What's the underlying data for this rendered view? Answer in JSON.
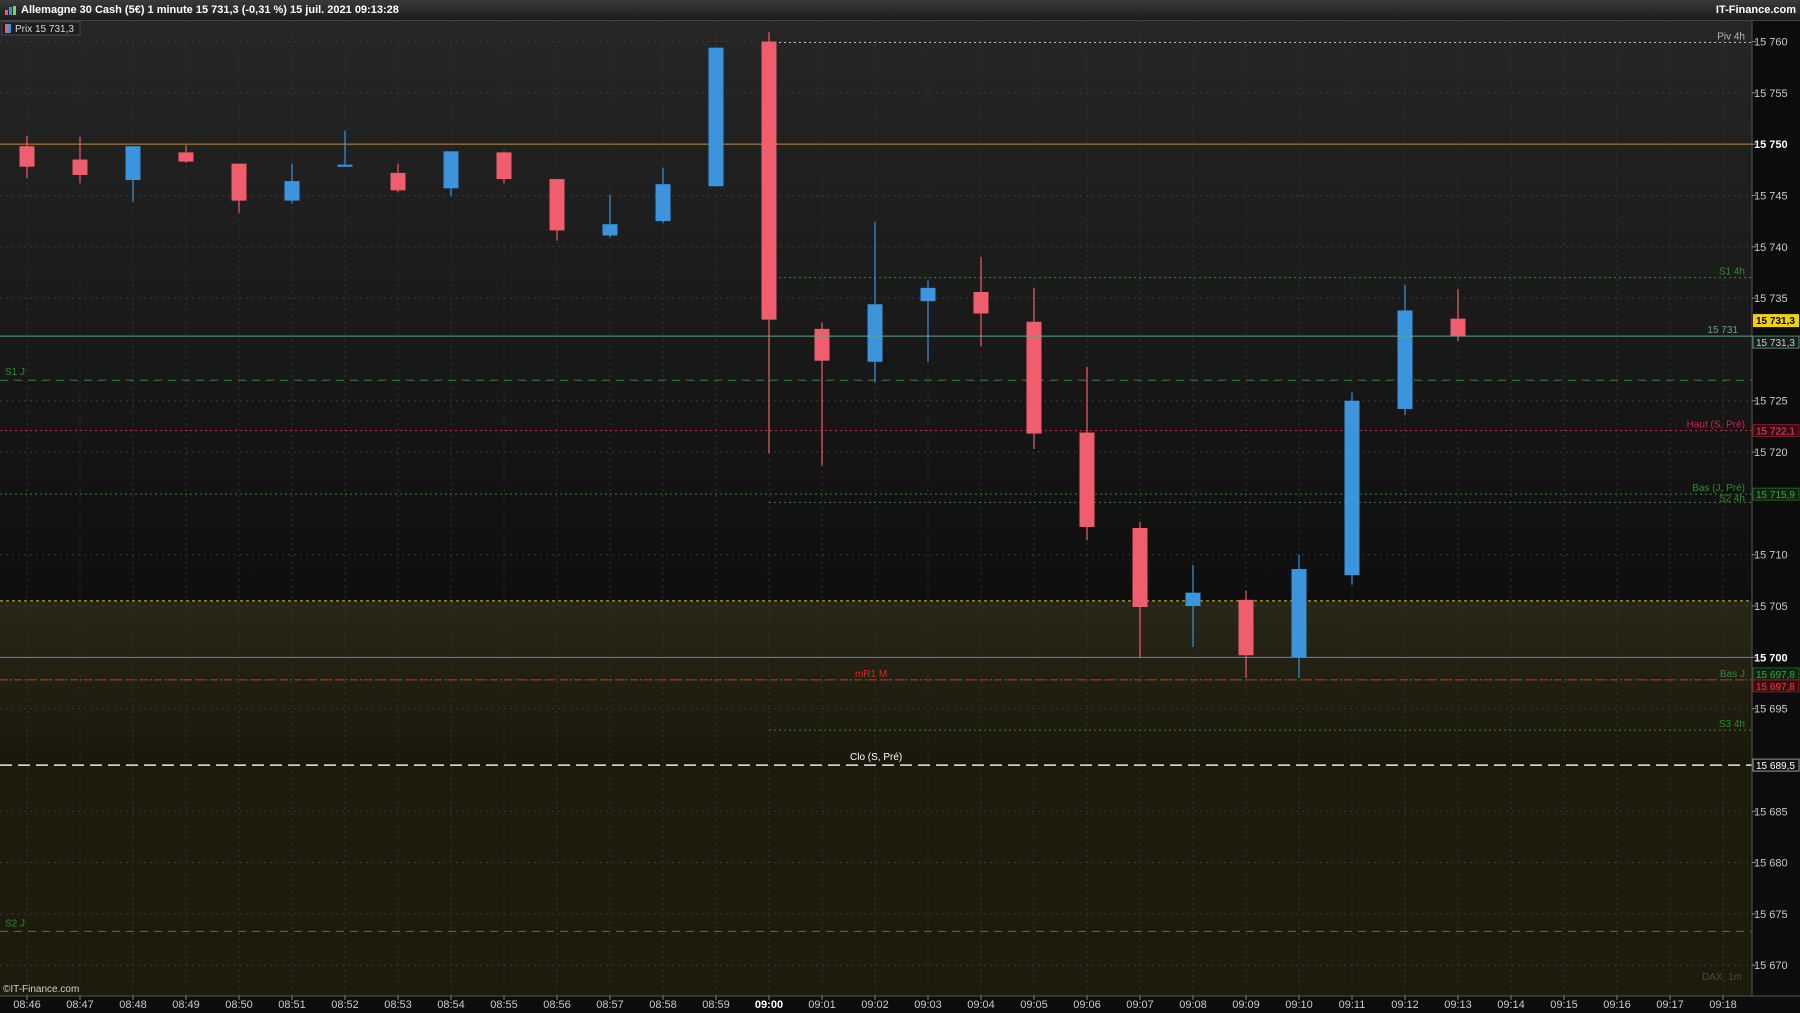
{
  "header": {
    "title": "Allemagne 30 Cash (5€) 1 minute 15 731,3 (-0,31 %) 15 juil. 2021 09:13:28",
    "brand": "IT-Finance.com"
  },
  "legend_tag": "Prix 15 731,3",
  "watermark": "DAX, 1m",
  "copyright": "©IT-Finance.com",
  "colors": {
    "up": "#3b94dc",
    "down": "#f05d6c",
    "price_line": "#5ea88a",
    "orange": "#c9892a"
  },
  "chart_data": {
    "type": "candlestick",
    "x_ticks": [
      "08:46",
      "08:47",
      "08:48",
      "08:49",
      "08:50",
      "08:51",
      "08:52",
      "08:53",
      "08:54",
      "08:55",
      "08:56",
      "08:57",
      "08:58",
      "08:59",
      "09:00",
      "09:01",
      "09:02",
      "09:03",
      "09:04",
      "09:05",
      "09:06",
      "09:07",
      "09:08",
      "09:09",
      "09:10",
      "09:11",
      "09:12",
      "09:13",
      "09:14",
      "09:15",
      "09:16",
      "09:17",
      "09:18"
    ],
    "x_tick_bold": "09:00",
    "ylim": [
      15667,
      15762
    ],
    "y_ticks": [
      {
        "v": 15760,
        "label": "15 760"
      },
      {
        "v": 15755,
        "label": "15 755"
      },
      {
        "v": 15750,
        "label": "15 750",
        "bold": true
      },
      {
        "v": 15745,
        "label": "15 745"
      },
      {
        "v": 15740,
        "label": "15 740"
      },
      {
        "v": 15735,
        "label": "15 735"
      },
      {
        "v": 15725,
        "label": "15 725"
      },
      {
        "v": 15720,
        "label": "15 720"
      },
      {
        "v": 15710,
        "label": "15 710"
      },
      {
        "v": 15705,
        "label": "15 705"
      },
      {
        "v": 15700,
        "label": "15 700",
        "bold": true
      },
      {
        "v": 15695,
        "label": "15 695"
      },
      {
        "v": 15685,
        "label": "15 685"
      },
      {
        "v": 15680,
        "label": "15 680"
      },
      {
        "v": 15675,
        "label": "15 675"
      },
      {
        "v": 15670,
        "label": "15 670"
      }
    ],
    "candles": [
      {
        "t": "08:46",
        "o": 15749.8,
        "h": 15750.8,
        "l": 15746.7,
        "c": 15747.8
      },
      {
        "t": "08:47",
        "o": 15748.5,
        "h": 15750.7,
        "l": 15746.2,
        "c": 15747.0
      },
      {
        "t": "08:48",
        "o": 15746.5,
        "h": 15749.8,
        "l": 15744.4,
        "c": 15749.8
      },
      {
        "t": "08:49",
        "o": 15749.2,
        "h": 15749.9,
        "l": 15748.2,
        "c": 15748.3
      },
      {
        "t": "08:50",
        "o": 15748.1,
        "h": 15748.1,
        "l": 15743.3,
        "c": 15744.5
      },
      {
        "t": "08:51",
        "o": 15744.5,
        "h": 15748.1,
        "l": 15744.2,
        "c": 15746.4
      },
      {
        "t": "08:52",
        "o": 15747.8,
        "h": 15751.3,
        "l": 15747.8,
        "c": 15748.0
      },
      {
        "t": "08:53",
        "o": 15747.2,
        "h": 15748.1,
        "l": 15745.3,
        "c": 15745.5
      },
      {
        "t": "08:54",
        "o": 15745.7,
        "h": 15749.3,
        "l": 15744.9,
        "c": 15749.3
      },
      {
        "t": "08:55",
        "o": 15749.2,
        "h": 15749.3,
        "l": 15746.2,
        "c": 15746.6
      },
      {
        "t": "08:56",
        "o": 15746.6,
        "h": 15746.6,
        "l": 15740.6,
        "c": 15741.6
      },
      {
        "t": "08:57",
        "o": 15741.1,
        "h": 15745.1,
        "l": 15740.9,
        "c": 15742.2
      },
      {
        "t": "08:58",
        "o": 15742.5,
        "h": 15747.7,
        "l": 15742.3,
        "c": 15746.1
      },
      {
        "t": "08:59",
        "o": 15745.9,
        "h": 15759.4,
        "l": 15745.9,
        "c": 15759.4
      },
      {
        "t": "09:00",
        "o": 15760.0,
        "h": 15760.9,
        "l": 15719.9,
        "c": 15732.9
      },
      {
        "t": "09:01",
        "o": 15732.0,
        "h": 15732.6,
        "l": 15718.7,
        "c": 15728.9
      },
      {
        "t": "09:02",
        "o": 15728.8,
        "h": 15742.4,
        "l": 15726.8,
        "c": 15734.4
      },
      {
        "t": "09:03",
        "o": 15734.7,
        "h": 15736.7,
        "l": 15728.8,
        "c": 15736.0
      },
      {
        "t": "09:04",
        "o": 15735.6,
        "h": 15739.0,
        "l": 15730.3,
        "c": 15733.5
      },
      {
        "t": "09:05",
        "o": 15732.7,
        "h": 15736.0,
        "l": 15720.3,
        "c": 15721.8
      },
      {
        "t": "09:06",
        "o": 15721.9,
        "h": 15728.3,
        "l": 15711.4,
        "c": 15712.7
      },
      {
        "t": "09:07",
        "o": 15712.6,
        "h": 15713.2,
        "l": 15700.0,
        "c": 15704.9
      },
      {
        "t": "09:08",
        "o": 15705.0,
        "h": 15709.0,
        "l": 15701.0,
        "c": 15706.3
      },
      {
        "t": "09:09",
        "o": 15705.6,
        "h": 15706.5,
        "l": 15698.0,
        "c": 15700.2
      },
      {
        "t": "09:10",
        "o": 15700.0,
        "h": 15710.0,
        "l": 15698.0,
        "c": 15708.6
      },
      {
        "t": "09:11",
        "o": 15708.0,
        "h": 15725.8,
        "l": 15707.1,
        "c": 15725.0
      },
      {
        "t": "09:12",
        "o": 15724.2,
        "h": 15736.3,
        "l": 15723.6,
        "c": 15733.8
      },
      {
        "t": "09:13",
        "o": 15733.0,
        "h": 15735.9,
        "l": 15730.8,
        "c": 15731.3
      }
    ],
    "levels": [
      {
        "label": "Piv 4h",
        "v": 15759.9,
        "color": "#bbbbbb",
        "style": "dot",
        "from": "09:00"
      },
      {
        "label": "S1 4h",
        "v": 15737.0,
        "color": "#2f8c2f",
        "style": "dot",
        "from": "09:00"
      },
      {
        "label": "S1 J",
        "v": 15727.0,
        "color": "#2f8c2f",
        "style": "dash"
      },
      {
        "label": "Haut (S, Pré)",
        "v": 15722.1,
        "color": "#c2264a",
        "style": "dot",
        "tag": "15 722,1"
      },
      {
        "label": "Bas (J, Pré)",
        "v": 15715.9,
        "color": "#2f8c2f",
        "style": "dot",
        "tag": "15 715,9"
      },
      {
        "label": "S2 4h",
        "v": 15715.1,
        "color": "#2f8c2f",
        "style": "dot",
        "from": "09:00"
      },
      {
        "label": "Bas J",
        "v": 15697.8,
        "color": "#2f8c2f",
        "style": "dot",
        "tag": "15 697,8"
      },
      {
        "label": "mR1 M",
        "v": 15697.8,
        "color": "#e0202a",
        "style": "dash",
        "tag": "15 697,8"
      },
      {
        "label": "S3 4h",
        "v": 15692.9,
        "color": "#2f8c2f",
        "style": "dot",
        "from": "09:00"
      },
      {
        "label": "Clo (S, Pré)",
        "v": 15689.5,
        "color": "#e6e6e6",
        "style": "dash",
        "tag": "15 689,5"
      },
      {
        "label": "S2 J",
        "v": 15673.3,
        "color": "#2f8c2f",
        "style": "dash"
      }
    ],
    "price": {
      "v": 15731.3,
      "label": "15 731",
      "tag": "15 731,3"
    }
  }
}
